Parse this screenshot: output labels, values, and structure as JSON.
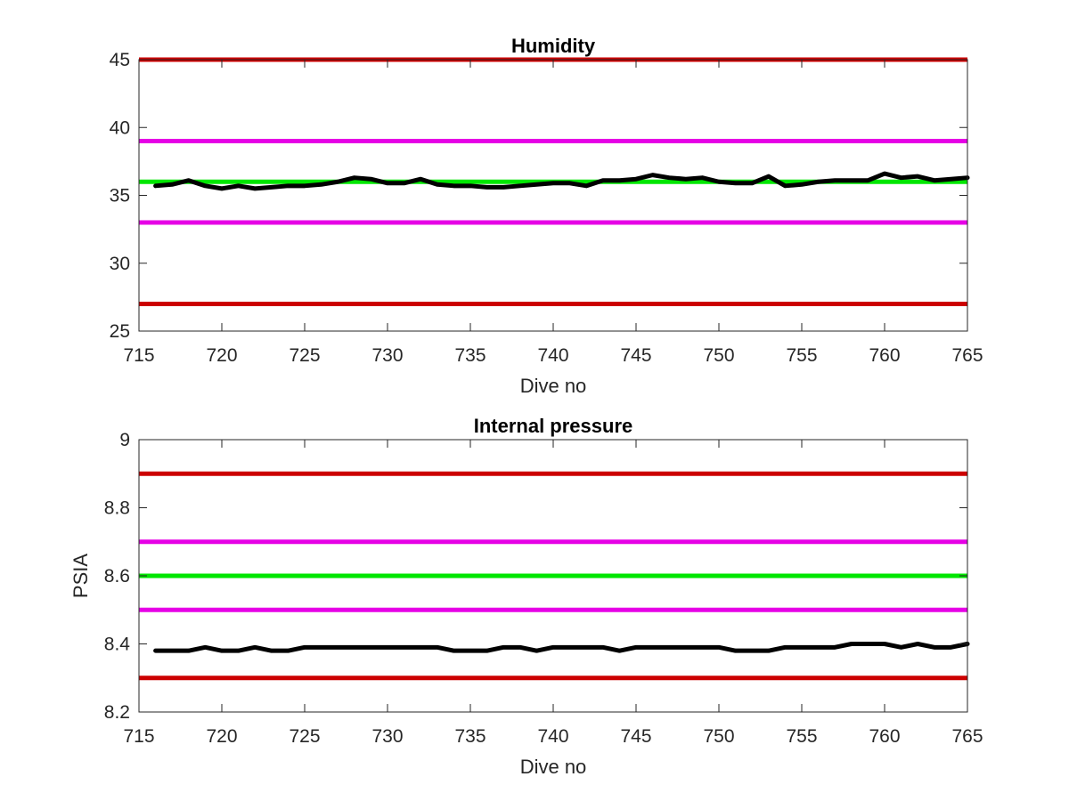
{
  "chart_data": [
    {
      "type": "line",
      "title": "Humidity",
      "xlabel": "Dive no",
      "ylabel": "",
      "xlim": [
        715,
        765
      ],
      "ylim": [
        25,
        45
      ],
      "xticks": [
        715,
        720,
        725,
        730,
        735,
        740,
        745,
        750,
        755,
        760,
        765
      ],
      "yticks": [
        25,
        30,
        35,
        40,
        45
      ],
      "grid": false,
      "threshold_lines": [
        {
          "level": "upper-limit",
          "y": 45,
          "color": "#cc0000"
        },
        {
          "level": "upper-warning",
          "y": 39,
          "color": "#e600e6"
        },
        {
          "level": "nominal",
          "y": 36,
          "color": "#00e600"
        },
        {
          "level": "lower-warning",
          "y": 33,
          "color": "#e600e6"
        },
        {
          "level": "lower-limit",
          "y": 27,
          "color": "#cc0000"
        }
      ],
      "series": [
        {
          "color": "#000000",
          "x": [
            716,
            717,
            718,
            719,
            720,
            721,
            722,
            723,
            724,
            725,
            726,
            727,
            728,
            729,
            730,
            731,
            732,
            733,
            734,
            735,
            736,
            737,
            738,
            739,
            740,
            741,
            742,
            743,
            744,
            745,
            746,
            747,
            748,
            749,
            750,
            751,
            752,
            753,
            754,
            755,
            756,
            757,
            758,
            759,
            760,
            761,
            762,
            763,
            764,
            765
          ],
          "y": [
            35.7,
            35.8,
            36.1,
            35.7,
            35.5,
            35.7,
            35.5,
            35.6,
            35.7,
            35.7,
            35.8,
            36.0,
            36.3,
            36.2,
            35.9,
            35.9,
            36.2,
            35.8,
            35.7,
            35.7,
            35.6,
            35.6,
            35.7,
            35.8,
            35.9,
            35.9,
            35.7,
            36.1,
            36.1,
            36.2,
            36.5,
            36.3,
            36.2,
            36.3,
            36.0,
            35.9,
            35.9,
            36.4,
            35.7,
            35.8,
            36.0,
            36.1,
            36.1,
            36.1,
            36.6,
            36.3,
            36.4,
            36.1,
            36.2,
            36.3
          ]
        }
      ]
    },
    {
      "type": "line",
      "title": "Internal pressure",
      "xlabel": "Dive no",
      "ylabel": "PSIA",
      "xlim": [
        715,
        765
      ],
      "ylim": [
        8.2,
        9
      ],
      "xticks": [
        715,
        720,
        725,
        730,
        735,
        740,
        745,
        750,
        755,
        760,
        765
      ],
      "yticks": [
        8.2,
        8.4,
        8.6,
        8.8,
        9
      ],
      "ytick_labels": [
        "8.2",
        "8.4",
        "8.6",
        "8.8",
        "9"
      ],
      "grid": false,
      "threshold_lines": [
        {
          "level": "upper-limit",
          "y": 8.9,
          "color": "#cc0000"
        },
        {
          "level": "upper-warning",
          "y": 8.7,
          "color": "#e600e6"
        },
        {
          "level": "nominal",
          "y": 8.6,
          "color": "#00e600"
        },
        {
          "level": "lower-warning",
          "y": 8.5,
          "color": "#e600e6"
        },
        {
          "level": "lower-limit",
          "y": 8.3,
          "color": "#cc0000"
        }
      ],
      "series": [
        {
          "color": "#000000",
          "x": [
            716,
            717,
            718,
            719,
            720,
            721,
            722,
            723,
            724,
            725,
            726,
            727,
            728,
            729,
            730,
            731,
            732,
            733,
            734,
            735,
            736,
            737,
            738,
            739,
            740,
            741,
            742,
            743,
            744,
            745,
            746,
            747,
            748,
            749,
            750,
            751,
            752,
            753,
            754,
            755,
            756,
            757,
            758,
            759,
            760,
            761,
            762,
            763,
            764,
            765
          ],
          "y": [
            8.38,
            8.38,
            8.38,
            8.39,
            8.38,
            8.38,
            8.39,
            8.38,
            8.38,
            8.39,
            8.39,
            8.39,
            8.39,
            8.39,
            8.39,
            8.39,
            8.39,
            8.39,
            8.38,
            8.38,
            8.38,
            8.39,
            8.39,
            8.38,
            8.39,
            8.39,
            8.39,
            8.39,
            8.38,
            8.39,
            8.39,
            8.39,
            8.39,
            8.39,
            8.39,
            8.38,
            8.38,
            8.38,
            8.39,
            8.39,
            8.39,
            8.39,
            8.4,
            8.4,
            8.4,
            8.39,
            8.4,
            8.39,
            8.39,
            8.4
          ]
        }
      ]
    }
  ]
}
